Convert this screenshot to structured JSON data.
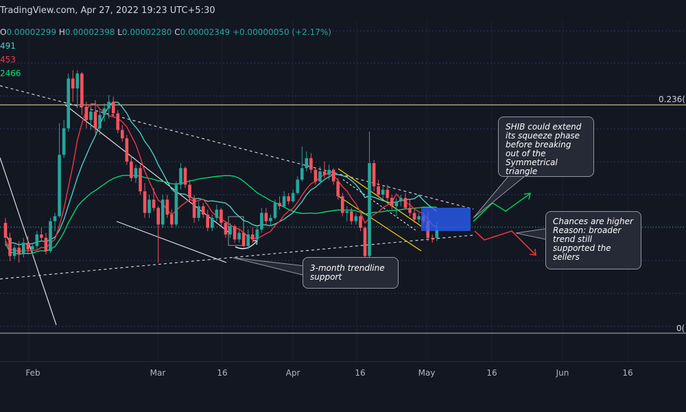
{
  "header": {
    "source": "TradingView.com, Apr 27, 2022 19:23 UTC+5:30"
  },
  "ohlc": {
    "o_label": "O",
    "o": "0.00002299",
    "h_label": "H",
    "h": "0.00002398",
    "l_label": "L",
    "l": "0.00002280",
    "c_label": "C",
    "c": "0.00002349",
    "change": "+0.00000050 (+2.17%)"
  },
  "moving_averages": [
    {
      "value": "491",
      "color": "#4dd0c4"
    },
    {
      "value": "453",
      "color": "#f23645"
    },
    {
      "value": "2466",
      "color": "#00e676"
    }
  ],
  "fib_levels": {
    "upper": "0.236(",
    "lower": "0("
  },
  "annotations": {
    "squeeze": "SHIB could extend its squeeze phase before breaking out of the Symmetrical triangle",
    "trendline": "3-month trendline support",
    "sellers": "Chances are higher Reason: broader trend still supported the sellers"
  },
  "colors": {
    "background": "#131722",
    "up_candle": "#26a69a",
    "down_candle": "#f7525f",
    "target_box": "#2962ff",
    "bull_arrow": "#00c853",
    "bear_arrow": "#e53935",
    "channel": "#f5d90a",
    "fib_line": "#f0e6a0"
  },
  "chart_data": {
    "type": "candlestick",
    "symbol_note": "Shiba Inu daily",
    "x_tick_labels": [
      "Feb",
      "Mar",
      "16",
      "Apr",
      "16",
      "May",
      "16",
      "Jun",
      "16"
    ],
    "candles": [
      {
        "x": "Jan 21",
        "o": 2390,
        "h": 2420,
        "l": 2250,
        "c": 2300
      },
      {
        "x": "Jan 22",
        "o": 2300,
        "h": 2330,
        "l": 2160,
        "c": 2190
      },
      {
        "x": "Jan 23",
        "o": 2190,
        "h": 2260,
        "l": 2170,
        "c": 2240
      },
      {
        "x": "Jan 24",
        "o": 2240,
        "h": 2280,
        "l": 2150,
        "c": 2200
      },
      {
        "x": "Jan 25",
        "o": 2200,
        "h": 2300,
        "l": 2180,
        "c": 2270
      },
      {
        "x": "Jan 26",
        "o": 2270,
        "h": 2310,
        "l": 2200,
        "c": 2230
      },
      {
        "x": "Jan 27",
        "o": 2230,
        "h": 2270,
        "l": 2190,
        "c": 2250
      },
      {
        "x": "Jan 28",
        "o": 2250,
        "h": 2340,
        "l": 2230,
        "c": 2320
      },
      {
        "x": "Jan 29",
        "o": 2320,
        "h": 2360,
        "l": 2280,
        "c": 2300
      },
      {
        "x": "Jan 30",
        "o": 2300,
        "h": 2330,
        "l": 2200,
        "c": 2220
      },
      {
        "x": "Jan 31",
        "o": 2220,
        "h": 2420,
        "l": 2210,
        "c": 2400
      },
      {
        "x": "Feb 1",
        "o": 2400,
        "h": 2450,
        "l": 2340,
        "c": 2430
      },
      {
        "x": "Feb 2",
        "o": 2430,
        "h": 2990,
        "l": 2420,
        "c": 2800
      },
      {
        "x": "Feb 3",
        "o": 2800,
        "h": 3010,
        "l": 2780,
        "c": 2960
      },
      {
        "x": "Feb 4",
        "o": 2960,
        "h": 3290,
        "l": 2940,
        "c": 3260
      },
      {
        "x": "Feb 5",
        "o": 3260,
        "h": 3310,
        "l": 3120,
        "c": 3200
      },
      {
        "x": "Feb 6",
        "o": 3200,
        "h": 3310,
        "l": 3080,
        "c": 3290
      },
      {
        "x": "Feb 7",
        "o": 3290,
        "h": 3300,
        "l": 3040,
        "c": 3090
      },
      {
        "x": "Feb 8",
        "o": 3090,
        "h": 3120,
        "l": 2960,
        "c": 3010
      },
      {
        "x": "Feb 9",
        "o": 3010,
        "h": 3100,
        "l": 2950,
        "c": 3060
      },
      {
        "x": "Feb 10",
        "o": 3060,
        "h": 3130,
        "l": 2930,
        "c": 2960
      },
      {
        "x": "Feb 11",
        "o": 2960,
        "h": 3070,
        "l": 2920,
        "c": 3040
      },
      {
        "x": "Feb 12",
        "o": 3040,
        "h": 3110,
        "l": 3000,
        "c": 3080
      },
      {
        "x": "Feb 13",
        "o": 3080,
        "h": 3160,
        "l": 3020,
        "c": 3120
      },
      {
        "x": "Feb 14",
        "o": 3120,
        "h": 3150,
        "l": 3030,
        "c": 3050
      },
      {
        "x": "Feb 15",
        "o": 3050,
        "h": 3070,
        "l": 2930,
        "c": 2950
      },
      {
        "x": "Feb 16",
        "o": 2950,
        "h": 2980,
        "l": 2880,
        "c": 2900
      },
      {
        "x": "Feb 17",
        "o": 2900,
        "h": 2920,
        "l": 2740,
        "c": 2760
      },
      {
        "x": "Feb 18",
        "o": 2760,
        "h": 2790,
        "l": 2640,
        "c": 2660
      },
      {
        "x": "Feb 19",
        "o": 2660,
        "h": 2740,
        "l": 2630,
        "c": 2720
      },
      {
        "x": "Feb 20",
        "o": 2720,
        "h": 2740,
        "l": 2560,
        "c": 2580
      },
      {
        "x": "Feb 21",
        "o": 2580,
        "h": 2630,
        "l": 2420,
        "c": 2450
      },
      {
        "x": "Feb 22",
        "o": 2450,
        "h": 2560,
        "l": 2420,
        "c": 2530
      },
      {
        "x": "Feb 23",
        "o": 2530,
        "h": 2600,
        "l": 2460,
        "c": 2480
      },
      {
        "x": "Feb 24",
        "o": 2480,
        "h": 2490,
        "l": 2150,
        "c": 2380
      },
      {
        "x": "Feb 25",
        "o": 2380,
        "h": 2560,
        "l": 2360,
        "c": 2530
      },
      {
        "x": "Feb 26",
        "o": 2530,
        "h": 2560,
        "l": 2420,
        "c": 2440
      },
      {
        "x": "Feb 27",
        "o": 2440,
        "h": 2470,
        "l": 2360,
        "c": 2380
      },
      {
        "x": "Feb 28",
        "o": 2380,
        "h": 2640,
        "l": 2370,
        "c": 2620
      },
      {
        "x": "Mar 1",
        "o": 2620,
        "h": 2750,
        "l": 2590,
        "c": 2720
      },
      {
        "x": "Mar 2",
        "o": 2720,
        "h": 2730,
        "l": 2600,
        "c": 2620
      },
      {
        "x": "Mar 3",
        "o": 2620,
        "h": 2650,
        "l": 2520,
        "c": 2540
      },
      {
        "x": "Mar 4",
        "o": 2540,
        "h": 2560,
        "l": 2390,
        "c": 2420
      },
      {
        "x": "Mar 5",
        "o": 2420,
        "h": 2520,
        "l": 2400,
        "c": 2490
      },
      {
        "x": "Mar 6",
        "o": 2490,
        "h": 2510,
        "l": 2420,
        "c": 2440
      },
      {
        "x": "Mar 7",
        "o": 2440,
        "h": 2470,
        "l": 2340,
        "c": 2360
      },
      {
        "x": "Mar 8",
        "o": 2360,
        "h": 2440,
        "l": 2340,
        "c": 2420
      },
      {
        "x": "Mar 9",
        "o": 2420,
        "h": 2500,
        "l": 2400,
        "c": 2470
      },
      {
        "x": "Mar 10",
        "o": 2470,
        "h": 2480,
        "l": 2370,
        "c": 2390
      },
      {
        "x": "Mar 11",
        "o": 2390,
        "h": 2400,
        "l": 2300,
        "c": 2320
      },
      {
        "x": "Mar 12",
        "o": 2320,
        "h": 2390,
        "l": 2300,
        "c": 2370
      },
      {
        "x": "Mar 13",
        "o": 2370,
        "h": 2380,
        "l": 2270,
        "c": 2290
      },
      {
        "x": "Mar 14",
        "o": 2290,
        "h": 2350,
        "l": 2270,
        "c": 2330
      },
      {
        "x": "Mar 15",
        "o": 2330,
        "h": 2340,
        "l": 2240,
        "c": 2250
      },
      {
        "x": "Mar 16",
        "o": 2250,
        "h": 2350,
        "l": 2230,
        "c": 2320
      },
      {
        "x": "Mar 17",
        "o": 2320,
        "h": 2360,
        "l": 2270,
        "c": 2290
      },
      {
        "x": "Mar 18",
        "o": 2290,
        "h": 2370,
        "l": 2260,
        "c": 2350
      },
      {
        "x": "Mar 19",
        "o": 2350,
        "h": 2480,
        "l": 2330,
        "c": 2450
      },
      {
        "x": "Mar 20",
        "o": 2450,
        "h": 2480,
        "l": 2380,
        "c": 2400
      },
      {
        "x": "Mar 21",
        "o": 2400,
        "h": 2440,
        "l": 2370,
        "c": 2420
      },
      {
        "x": "Mar 22",
        "o": 2420,
        "h": 2530,
        "l": 2410,
        "c": 2510
      },
      {
        "x": "Mar 23",
        "o": 2510,
        "h": 2550,
        "l": 2470,
        "c": 2490
      },
      {
        "x": "Mar 24",
        "o": 2490,
        "h": 2580,
        "l": 2480,
        "c": 2550
      },
      {
        "x": "Mar 25",
        "o": 2550,
        "h": 2570,
        "l": 2500,
        "c": 2520
      },
      {
        "x": "Mar 26",
        "o": 2520,
        "h": 2590,
        "l": 2510,
        "c": 2570
      },
      {
        "x": "Mar 27",
        "o": 2570,
        "h": 2670,
        "l": 2560,
        "c": 2650
      },
      {
        "x": "Mar 28",
        "o": 2650,
        "h": 2850,
        "l": 2640,
        "c": 2720
      },
      {
        "x": "Mar 29",
        "o": 2720,
        "h": 2820,
        "l": 2700,
        "c": 2780
      },
      {
        "x": "Mar 30",
        "o": 2780,
        "h": 2810,
        "l": 2690,
        "c": 2710
      },
      {
        "x": "Mar 31",
        "o": 2710,
        "h": 2720,
        "l": 2620,
        "c": 2640
      },
      {
        "x": "Apr 1",
        "o": 2640,
        "h": 2730,
        "l": 2620,
        "c": 2700
      },
      {
        "x": "Apr 2",
        "o": 2700,
        "h": 2760,
        "l": 2660,
        "c": 2680
      },
      {
        "x": "Apr 3",
        "o": 2680,
        "h": 2740,
        "l": 2650,
        "c": 2710
      },
      {
        "x": "Apr 4",
        "o": 2710,
        "h": 2720,
        "l": 2620,
        "c": 2640
      },
      {
        "x": "Apr 5",
        "o": 2640,
        "h": 2660,
        "l": 2530,
        "c": 2550
      },
      {
        "x": "Apr 6",
        "o": 2550,
        "h": 2570,
        "l": 2430,
        "c": 2450
      },
      {
        "x": "Apr 7",
        "o": 2450,
        "h": 2490,
        "l": 2400,
        "c": 2460
      },
      {
        "x": "Apr 8",
        "o": 2460,
        "h": 2480,
        "l": 2380,
        "c": 2400
      },
      {
        "x": "Apr 9",
        "o": 2400,
        "h": 2450,
        "l": 2380,
        "c": 2430
      },
      {
        "x": "Apr 10",
        "o": 2430,
        "h": 2440,
        "l": 2340,
        "c": 2360
      },
      {
        "x": "Apr 11",
        "o": 2360,
        "h": 2370,
        "l": 2160,
        "c": 2190
      },
      {
        "x": "Apr 12",
        "o": 2190,
        "h": 2940,
        "l": 2180,
        "c": 2750
      },
      {
        "x": "Apr 13",
        "o": 2750,
        "h": 2770,
        "l": 2580,
        "c": 2610
      },
      {
        "x": "Apr 14",
        "o": 2610,
        "h": 2650,
        "l": 2540,
        "c": 2560
      },
      {
        "x": "Apr 15",
        "o": 2560,
        "h": 2610,
        "l": 2530,
        "c": 2590
      },
      {
        "x": "Apr 16",
        "o": 2590,
        "h": 2620,
        "l": 2520,
        "c": 2540
      },
      {
        "x": "Apr 17",
        "o": 2540,
        "h": 2560,
        "l": 2470,
        "c": 2490
      },
      {
        "x": "Apr 18",
        "o": 2490,
        "h": 2540,
        "l": 2430,
        "c": 2520
      },
      {
        "x": "Apr 19",
        "o": 2520,
        "h": 2560,
        "l": 2490,
        "c": 2540
      },
      {
        "x": "Apr 20",
        "o": 2540,
        "h": 2570,
        "l": 2470,
        "c": 2480
      },
      {
        "x": "Apr 21",
        "o": 2480,
        "h": 2530,
        "l": 2430,
        "c": 2450
      },
      {
        "x": "Apr 22",
        "o": 2450,
        "h": 2470,
        "l": 2390,
        "c": 2410
      },
      {
        "x": "Apr 23",
        "o": 2410,
        "h": 2450,
        "l": 2390,
        "c": 2430
      },
      {
        "x": "Apr 24",
        "o": 2430,
        "h": 2440,
        "l": 2380,
        "c": 2400
      },
      {
        "x": "Apr 25",
        "o": 2400,
        "h": 2460,
        "l": 2280,
        "c": 2300
      },
      {
        "x": "Apr 26",
        "o": 2300,
        "h": 2320,
        "l": 2270,
        "c": 2299
      },
      {
        "x": "Apr 27",
        "o": 2299,
        "h": 2398,
        "l": 2280,
        "c": 2349
      }
    ]
  }
}
